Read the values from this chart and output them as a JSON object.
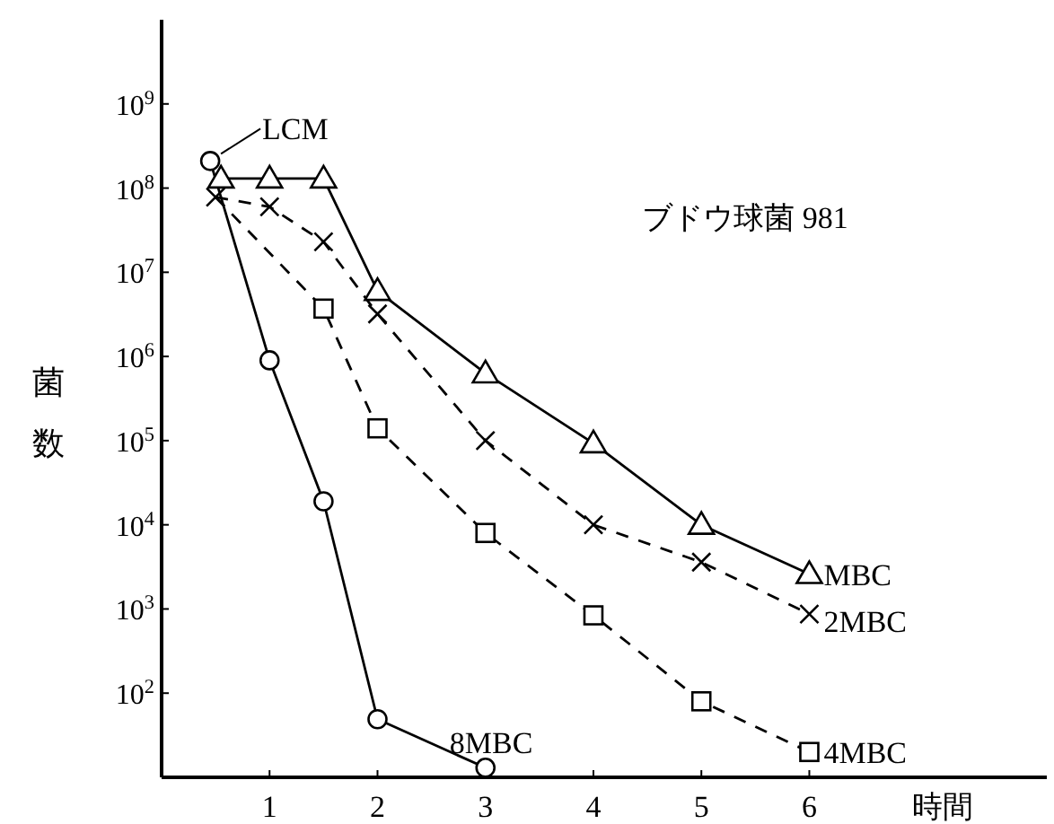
{
  "chart_data": {
    "type": "line",
    "title": "ブドウ球菌 981",
    "xlabel": "時間",
    "ylabel": "菌数",
    "xlim": [
      0,
      8.2
    ],
    "ylim": [
      10,
      10000000000
    ],
    "log": "y",
    "grid": false,
    "xticks": [
      1,
      2,
      3,
      4,
      5,
      6
    ],
    "yticks": [
      {
        "value": 100,
        "label": "10$^{2}$"
      },
      {
        "value": 1000,
        "label": "10$^{3}$"
      },
      {
        "value": 10000,
        "label": "10$^{4}$"
      },
      {
        "value": 100000,
        "label": "10$^{5}$"
      },
      {
        "value": 1000000,
        "label": "10$^{6}$"
      },
      {
        "value": 10000000,
        "label": "10$^{7}$"
      },
      {
        "value": 100000000,
        "label": "10$^{8}$"
      },
      {
        "value": 1000000000,
        "label": "10$^{9}$"
      }
    ],
    "annotations": [
      {
        "text": "LCM",
        "x": 0.45,
        "y": 210000000
      }
    ],
    "series": [
      {
        "name": "MBC",
        "color": "#000000",
        "marker": "triangle",
        "line_style": "solid",
        "x": [
          0.55,
          1,
          1.5,
          2,
          3,
          4,
          5,
          6
        ],
        "values": [
          130000000,
          130000000,
          130000000,
          6000000,
          630000,
          93000,
          10000,
          2600
        ]
      },
      {
        "name": "2MBC",
        "color": "#000000",
        "marker": "cross",
        "line_style": "dashed",
        "x": [
          0.5,
          1,
          1.5,
          2,
          3,
          4,
          5,
          6
        ],
        "values": [
          78000000,
          60000000,
          23000000,
          3200000,
          100000,
          10000,
          3600,
          870
        ]
      },
      {
        "name": "4MBC",
        "color": "#000000",
        "marker": "square",
        "line_style": "dashed",
        "x": [
          0.5,
          1.5,
          2,
          3,
          4,
          5,
          6
        ],
        "values": [
          78000000,
          3700000,
          140000,
          8000,
          840,
          80,
          20
        ]
      },
      {
        "name": "8MBC",
        "color": "#000000",
        "marker": "circle",
        "line_style": "solid",
        "x": [
          0.45,
          1,
          1.5,
          2,
          3
        ],
        "values": [
          210000000,
          900000,
          19000,
          49,
          13
        ]
      }
    ]
  }
}
